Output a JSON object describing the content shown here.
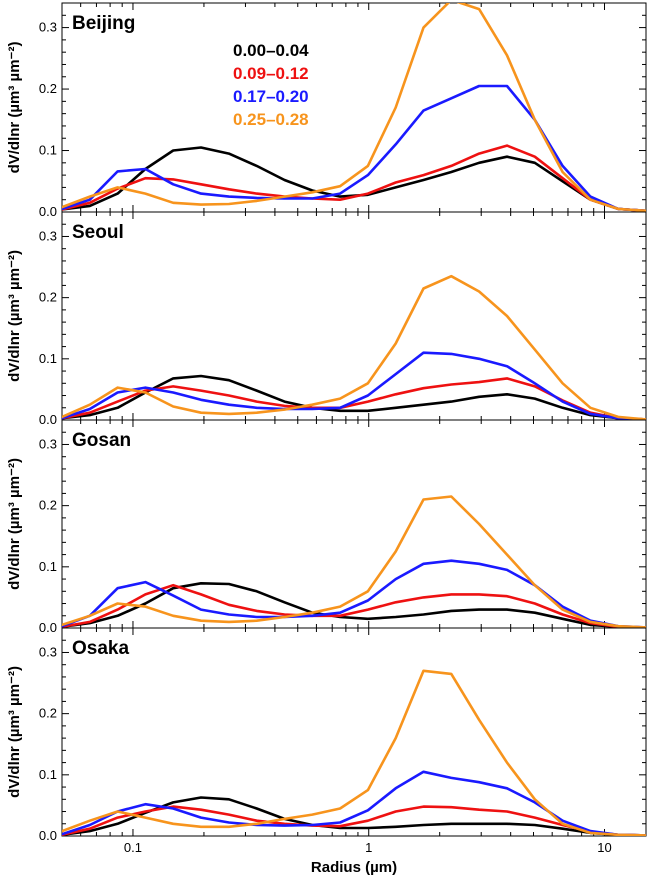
{
  "chart_data": {
    "type": "line",
    "x_scale": "log",
    "xlim": [
      0.05,
      15
    ],
    "ylim": [
      0,
      0.34
    ],
    "xlabel": "Radius (µm)",
    "ylabel": "dV/dlnr (µm³ µm⁻²)",
    "x_ticks": [
      0.1,
      1,
      10
    ],
    "x_tick_labels": [
      "0.1",
      "1",
      "10"
    ],
    "y_ticks": [
      0.0,
      0.1,
      0.2,
      0.3
    ],
    "y_tick_labels": [
      "0.0",
      "0.1",
      "0.2",
      "0.3"
    ],
    "legend": {
      "placement": "top-left (first panel)",
      "entries": [
        "0.00–0.04",
        "0.09–0.12",
        "0.17–0.20",
        "0.25–0.28"
      ]
    },
    "colors": [
      "#000000",
      "#ee1111",
      "#1a1aff",
      "#f7941d"
    ],
    "x": [
      0.05,
      0.065604,
      0.086077,
      0.112939,
      0.148184,
      0.194429,
      0.255105,
      0.334716,
      0.439173,
      0.576227,
      0.756052,
      0.99199,
      1.30156,
      1.70773,
      2.2407,
      2.93997,
      3.85745,
      5.06126,
      6.64074,
      8.71314,
      11.4322,
      15.0
    ],
    "panels": [
      {
        "title": "Beijing",
        "series": [
          {
            "name": "0.00–0.04",
            "values": [
              0.004,
              0.01,
              0.03,
              0.07,
              0.1,
              0.105,
              0.095,
              0.075,
              0.052,
              0.035,
              0.025,
              0.028,
              0.04,
              0.052,
              0.065,
              0.08,
              0.09,
              0.08,
              0.05,
              0.02,
              0.005,
              0.002
            ]
          },
          {
            "name": "0.09–0.12",
            "values": [
              0.004,
              0.015,
              0.038,
              0.055,
              0.053,
              0.045,
              0.037,
              0.03,
              0.025,
              0.022,
              0.02,
              0.03,
              0.048,
              0.06,
              0.075,
              0.095,
              0.108,
              0.09,
              0.055,
              0.02,
              0.005,
              0.002
            ]
          },
          {
            "name": "0.17–0.20",
            "values": [
              0.005,
              0.02,
              0.066,
              0.07,
              0.045,
              0.03,
              0.025,
              0.023,
              0.022,
              0.022,
              0.03,
              0.06,
              0.11,
              0.165,
              0.185,
              0.205,
              0.205,
              0.15,
              0.075,
              0.025,
              0.005,
              0.002
            ]
          },
          {
            "name": "0.25–0.28",
            "values": [
              0.008,
              0.025,
              0.04,
              0.03,
              0.015,
              0.012,
              0.013,
              0.018,
              0.025,
              0.032,
              0.042,
              0.075,
              0.17,
              0.3,
              0.345,
              0.33,
              0.255,
              0.15,
              0.065,
              0.02,
              0.005,
              0.002
            ]
          }
        ]
      },
      {
        "title": "Seoul",
        "series": [
          {
            "name": "0.00–0.04",
            "values": [
              0.003,
              0.008,
              0.02,
              0.045,
              0.068,
              0.072,
              0.065,
              0.048,
              0.03,
              0.02,
              0.015,
              0.015,
              0.02,
              0.025,
              0.03,
              0.038,
              0.042,
              0.035,
              0.02,
              0.008,
              0.003,
              0.001
            ]
          },
          {
            "name": "0.09–0.12",
            "values": [
              0.003,
              0.012,
              0.03,
              0.048,
              0.055,
              0.048,
              0.04,
              0.03,
              0.023,
              0.02,
              0.02,
              0.03,
              0.042,
              0.052,
              0.058,
              0.062,
              0.068,
              0.055,
              0.032,
              0.012,
              0.003,
              0.001
            ]
          },
          {
            "name": "0.17–0.20",
            "values": [
              0.003,
              0.018,
              0.045,
              0.053,
              0.045,
              0.033,
              0.025,
              0.02,
              0.018,
              0.018,
              0.02,
              0.04,
              0.075,
              0.11,
              0.108,
              0.1,
              0.088,
              0.06,
              0.03,
              0.01,
              0.003,
              0.001
            ]
          },
          {
            "name": "0.25–0.28",
            "values": [
              0.005,
              0.025,
              0.053,
              0.045,
              0.022,
              0.012,
              0.01,
              0.012,
              0.017,
              0.025,
              0.035,
              0.06,
              0.125,
              0.215,
              0.235,
              0.21,
              0.17,
              0.115,
              0.06,
              0.02,
              0.005,
              0.001
            ]
          }
        ]
      },
      {
        "title": "Gosan",
        "series": [
          {
            "name": "0.00–0.04",
            "values": [
              0.002,
              0.008,
              0.02,
              0.04,
              0.065,
              0.073,
              0.072,
              0.06,
              0.042,
              0.025,
              0.018,
              0.015,
              0.018,
              0.022,
              0.028,
              0.03,
              0.03,
              0.025,
              0.015,
              0.005,
              0.002,
              0.001
            ]
          },
          {
            "name": "0.09–0.12",
            "values": [
              0.002,
              0.01,
              0.03,
              0.055,
              0.07,
              0.055,
              0.038,
              0.028,
              0.022,
              0.02,
              0.02,
              0.03,
              0.042,
              0.05,
              0.055,
              0.055,
              0.052,
              0.04,
              0.022,
              0.008,
              0.002,
              0.001
            ]
          },
          {
            "name": "0.17–0.20",
            "values": [
              0.003,
              0.02,
              0.065,
              0.075,
              0.053,
              0.03,
              0.022,
              0.018,
              0.018,
              0.02,
              0.025,
              0.045,
              0.08,
              0.105,
              0.11,
              0.105,
              0.095,
              0.07,
              0.035,
              0.012,
              0.003,
              0.001
            ]
          },
          {
            "name": "0.25–0.28",
            "values": [
              0.005,
              0.02,
              0.04,
              0.035,
              0.02,
              0.012,
              0.01,
              0.012,
              0.018,
              0.025,
              0.035,
              0.06,
              0.125,
              0.21,
              0.215,
              0.17,
              0.12,
              0.07,
              0.03,
              0.01,
              0.003,
              0.001
            ]
          }
        ]
      },
      {
        "title": "Osaka",
        "series": [
          {
            "name": "0.00–0.04",
            "values": [
              0.002,
              0.008,
              0.02,
              0.038,
              0.055,
              0.063,
              0.06,
              0.045,
              0.028,
              0.018,
              0.013,
              0.013,
              0.015,
              0.018,
              0.02,
              0.02,
              0.02,
              0.018,
              0.012,
              0.005,
              0.002,
              0.001
            ]
          },
          {
            "name": "0.09–0.12",
            "values": [
              0.002,
              0.012,
              0.03,
              0.04,
              0.048,
              0.043,
              0.035,
              0.025,
              0.02,
              0.017,
              0.016,
              0.025,
              0.04,
              0.048,
              0.047,
              0.043,
              0.04,
              0.03,
              0.018,
              0.007,
              0.002,
              0.001
            ]
          },
          {
            "name": "0.17–0.20",
            "values": [
              0.003,
              0.018,
              0.04,
              0.052,
              0.045,
              0.03,
              0.022,
              0.018,
              0.017,
              0.018,
              0.022,
              0.042,
              0.078,
              0.105,
              0.095,
              0.088,
              0.078,
              0.055,
              0.025,
              0.008,
              0.002,
              0.001
            ]
          },
          {
            "name": "0.25–0.28",
            "values": [
              0.008,
              0.025,
              0.04,
              0.03,
              0.02,
              0.015,
              0.015,
              0.02,
              0.028,
              0.035,
              0.045,
              0.075,
              0.16,
              0.27,
              0.265,
              0.19,
              0.12,
              0.06,
              0.02,
              0.005,
              0.002,
              0.001
            ]
          }
        ]
      }
    ]
  }
}
